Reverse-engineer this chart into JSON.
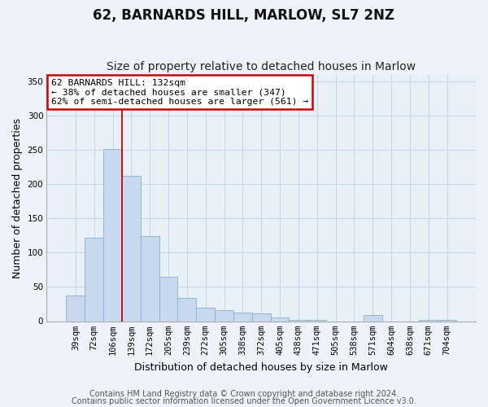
{
  "title": "62, BARNARDS HILL, MARLOW, SL7 2NZ",
  "subtitle": "Size of property relative to detached houses in Marlow",
  "xlabel": "Distribution of detached houses by size in Marlow",
  "ylabel": "Number of detached properties",
  "bar_labels": [
    "39sqm",
    "72sqm",
    "106sqm",
    "139sqm",
    "172sqm",
    "205sqm",
    "239sqm",
    "272sqm",
    "305sqm",
    "338sqm",
    "372sqm",
    "405sqm",
    "438sqm",
    "471sqm",
    "505sqm",
    "538sqm",
    "571sqm",
    "604sqm",
    "638sqm",
    "671sqm",
    "704sqm"
  ],
  "bar_values": [
    38,
    122,
    252,
    212,
    124,
    65,
    34,
    20,
    16,
    13,
    11,
    5,
    2,
    2,
    0,
    0,
    9,
    0,
    0,
    2,
    2
  ],
  "bar_color": "#c8d9ee",
  "bar_edge_color": "#8ab0d4",
  "vline_x": 2.5,
  "vline_color": "#cc0000",
  "ylim": [
    0,
    360
  ],
  "yticks": [
    0,
    50,
    100,
    150,
    200,
    250,
    300,
    350
  ],
  "annotation_box_text": "62 BARNARDS HILL: 132sqm\n← 38% of detached houses are smaller (347)\n62% of semi-detached houses are larger (561) →",
  "footer_line1": "Contains HM Land Registry data © Crown copyright and database right 2024.",
  "footer_line2": "Contains public sector information licensed under the Open Government Licence v3.0.",
  "background_color": "#eef3f9",
  "plot_bg_color": "#e8f0f8",
  "grid_color": "#c8d5e5",
  "title_fontsize": 12,
  "subtitle_fontsize": 10,
  "axis_label_fontsize": 9,
  "tick_fontsize": 7.5,
  "footer_fontsize": 7
}
